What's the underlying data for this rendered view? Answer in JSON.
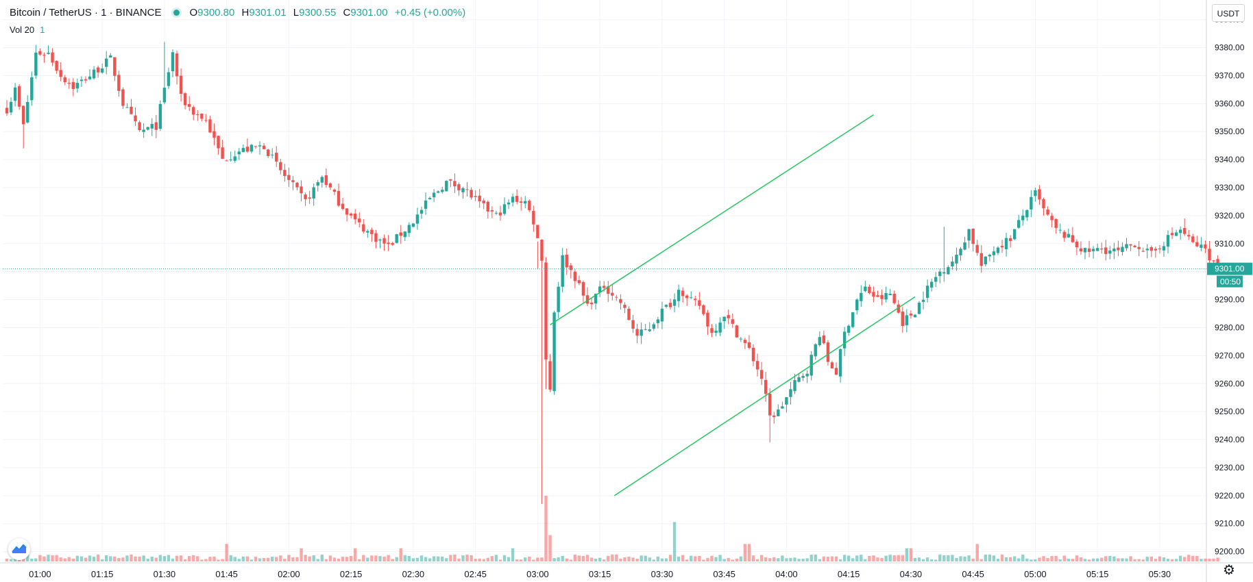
{
  "legend": {
    "symbol": "Bitcoin / TetherUS · 1 · BINANCE",
    "open_label": "O",
    "open": "9300.80",
    "high_label": "H",
    "high": "9301.01",
    "low_label": "L",
    "low": "9300.55",
    "close_label": "C",
    "close": "9301.00",
    "change": "+0.45 (+0.00%)"
  },
  "volume_legend": {
    "label": "Vol 20",
    "value": "1"
  },
  "toolbar": {
    "currency": "USDT",
    "settings_icon": "gear-icon",
    "logo_icon": "tradingview-logo-icon"
  },
  "colors": {
    "up": "#26a69a",
    "down": "#ef5350",
    "trendline": "#22c55e",
    "price_line": "#26a69a"
  },
  "chart_data": {
    "type": "candlestick",
    "interval_minutes": 1,
    "x_start": "00:52",
    "x_ticks": [
      "01:00",
      "01:15",
      "01:30",
      "01:45",
      "02:00",
      "02:15",
      "02:30",
      "02:45",
      "03:00",
      "03:15",
      "03:30",
      "03:45",
      "04:00",
      "04:15",
      "04:30",
      "04:45",
      "05:00",
      "05:15",
      "05:30"
    ],
    "y_ticks": [
      "9390.00",
      "9380.00",
      "9370.00",
      "9360.00",
      "9350.00",
      "9340.00",
      "9330.00",
      "9320.00",
      "9310.00",
      "9300.00",
      "9290.00",
      "9280.00",
      "9270.00",
      "9260.00",
      "9250.00",
      "9240.00",
      "9230.00",
      "9220.00",
      "9210.00",
      "9200.00"
    ],
    "ylim": [
      9196,
      9397
    ],
    "last_price": "9301.00",
    "countdown": "00:50",
    "keypoints": [
      [
        0,
        9358
      ],
      [
        2,
        9365
      ],
      [
        4,
        9352
      ],
      [
        7,
        9378
      ],
      [
        10,
        9378
      ],
      [
        13,
        9370
      ],
      [
        16,
        9366
      ],
      [
        20,
        9370
      ],
      [
        25,
        9376
      ],
      [
        28,
        9360
      ],
      [
        32,
        9350
      ],
      [
        36,
        9352
      ],
      [
        40,
        9378
      ],
      [
        42,
        9362
      ],
      [
        45,
        9357
      ],
      [
        48,
        9354
      ],
      [
        52,
        9340
      ],
      [
        56,
        9343
      ],
      [
        62,
        9345
      ],
      [
        66,
        9336
      ],
      [
        72,
        9325
      ],
      [
        76,
        9334
      ],
      [
        80,
        9325
      ],
      [
        84,
        9318
      ],
      [
        88,
        9313
      ],
      [
        92,
        9309
      ],
      [
        98,
        9318
      ],
      [
        102,
        9326
      ],
      [
        106,
        9332
      ],
      [
        110,
        9330
      ],
      [
        114,
        9324
      ],
      [
        118,
        9320
      ],
      [
        122,
        9326
      ],
      [
        125,
        9325
      ],
      [
        127,
        9318
      ],
      [
        129,
        9305
      ],
      [
        130,
        9269
      ],
      [
        131,
        9258
      ],
      [
        132,
        9286
      ],
      [
        134,
        9305
      ],
      [
        137,
        9298
      ],
      [
        140,
        9288
      ],
      [
        144,
        9295
      ],
      [
        148,
        9289
      ],
      [
        152,
        9277
      ],
      [
        155,
        9280
      ],
      [
        158,
        9286
      ],
      [
        161,
        9290
      ],
      [
        162,
        9295
      ],
      [
        164,
        9290
      ],
      [
        167,
        9288
      ],
      [
        170,
        9278
      ],
      [
        173,
        9285
      ],
      [
        176,
        9278
      ],
      [
        179,
        9272
      ],
      [
        182,
        9262
      ],
      [
        184,
        9248
      ],
      [
        186,
        9250
      ],
      [
        190,
        9260
      ],
      [
        193,
        9265
      ],
      [
        196,
        9278
      ],
      [
        198,
        9268
      ],
      [
        200,
        9264
      ],
      [
        202,
        9278
      ],
      [
        205,
        9290
      ],
      [
        207,
        9294
      ],
      [
        210,
        9290
      ],
      [
        213,
        9292
      ],
      [
        216,
        9282
      ],
      [
        219,
        9286
      ],
      [
        222,
        9294
      ],
      [
        225,
        9300
      ],
      [
        229,
        9305
      ],
      [
        232,
        9315
      ],
      [
        235,
        9302
      ],
      [
        238,
        9308
      ],
      [
        242,
        9312
      ],
      [
        245,
        9320
      ],
      [
        248,
        9328
      ],
      [
        250,
        9322
      ],
      [
        253,
        9315
      ],
      [
        256,
        9312
      ],
      [
        260,
        9307
      ],
      [
        264,
        9308
      ],
      [
        268,
        9307
      ],
      [
        272,
        9310
      ],
      [
        276,
        9306
      ],
      [
        280,
        9312
      ],
      [
        283,
        9315
      ],
      [
        286,
        9310
      ],
      [
        289,
        9308
      ],
      [
        291,
        9303
      ],
      [
        292,
        9301
      ]
    ],
    "volume_ylim": [
      0,
      25
    ],
    "volume_peaks": [
      [
        130,
        15
      ],
      [
        131,
        6
      ],
      [
        161,
        9
      ],
      [
        178,
        4
      ],
      [
        179,
        4
      ],
      [
        217,
        3
      ],
      [
        218,
        3
      ],
      [
        234,
        4
      ],
      [
        53,
        4
      ],
      [
        71,
        3
      ],
      [
        84,
        3
      ],
      [
        95,
        3
      ],
      [
        122,
        3
      ]
    ]
  }
}
